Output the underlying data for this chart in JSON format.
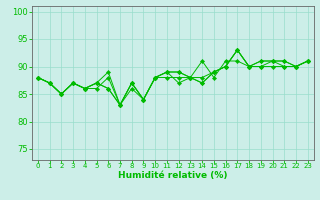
{
  "title": "",
  "xlabel": "Humidité relative (%)",
  "ylabel": "",
  "xlim": [
    -0.5,
    23.5
  ],
  "ylim": [
    73,
    101
  ],
  "yticks": [
    75,
    80,
    85,
    90,
    95,
    100
  ],
  "xticks": [
    0,
    1,
    2,
    3,
    4,
    5,
    6,
    7,
    8,
    9,
    10,
    11,
    12,
    13,
    14,
    15,
    16,
    17,
    18,
    19,
    20,
    21,
    22,
    23
  ],
  "bg_color": "#cceee8",
  "grid_color": "#99ddcc",
  "line_color": "#00bb00",
  "marker_color": "#00bb00",
  "lines": [
    [
      88,
      87,
      85,
      87,
      86,
      87,
      89,
      83,
      87,
      84,
      88,
      89,
      87,
      88,
      91,
      88,
      91,
      91,
      90,
      90,
      91,
      90,
      90,
      91
    ],
    [
      88,
      87,
      85,
      87,
      86,
      87,
      86,
      83,
      87,
      84,
      88,
      89,
      89,
      88,
      87,
      89,
      90,
      93,
      90,
      91,
      91,
      91,
      90,
      91
    ],
    [
      88,
      87,
      85,
      87,
      86,
      87,
      86,
      83,
      87,
      84,
      88,
      89,
      89,
      88,
      87,
      89,
      90,
      93,
      90,
      91,
      91,
      91,
      90,
      91
    ],
    [
      88,
      87,
      85,
      87,
      86,
      86,
      88,
      83,
      86,
      84,
      88,
      88,
      88,
      88,
      88,
      89,
      90,
      93,
      90,
      90,
      90,
      90,
      90,
      91
    ]
  ],
  "xtick_fontsize": 5.0,
  "ytick_fontsize": 6.0,
  "xlabel_fontsize": 6.5
}
